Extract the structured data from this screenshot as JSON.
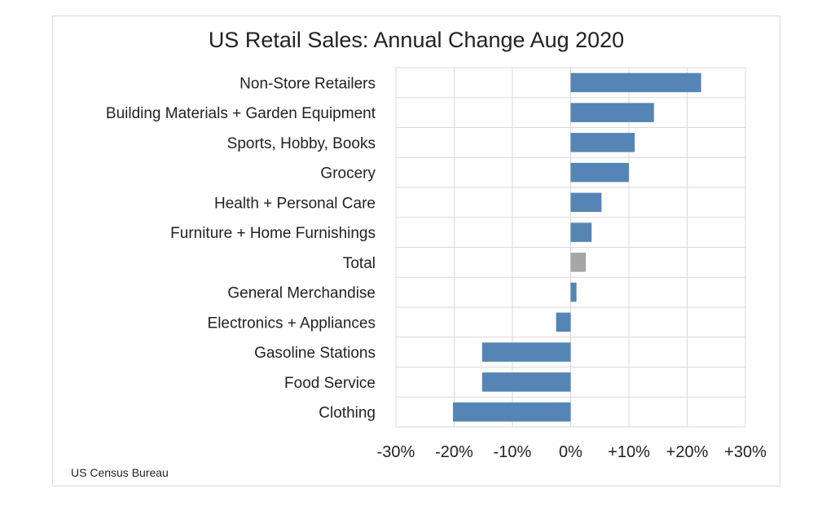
{
  "chart_data": {
    "type": "bar",
    "orientation": "horizontal",
    "title": "US Retail Sales: Annual Change Aug 2020",
    "source": "US Census Bureau",
    "categories": [
      "Non-Store Retailers",
      "Building Materials + Garden Equipment",
      "Sports, Hobby, Books",
      "Grocery",
      "Health + Personal Care",
      "Furniture + Home Furnishings",
      "Total",
      "General Merchandise",
      "Electronics + Appliances",
      "Gasoline Stations",
      "Food Service",
      "Clothing"
    ],
    "values": [
      22.4,
      14.3,
      11.0,
      10.0,
      5.3,
      3.6,
      2.6,
      1.0,
      -2.5,
      -15.2,
      -15.2,
      -20.2
    ],
    "highlight_category": "Total",
    "xlim": [
      -30,
      30
    ],
    "xticks": [
      -30,
      -20,
      -10,
      0,
      10,
      20,
      30
    ],
    "xtick_labels": [
      "-30%",
      "-20%",
      "-10%",
      "0%",
      "+10%",
      "+20%",
      "+30%"
    ],
    "xlabel": "",
    "ylabel": "",
    "grid": true,
    "legend": "none",
    "colors": {
      "bar": "#5585b5",
      "highlight_bar": "#a6a6a6",
      "grid": "#d9d9d9",
      "text": "#222222"
    }
  }
}
